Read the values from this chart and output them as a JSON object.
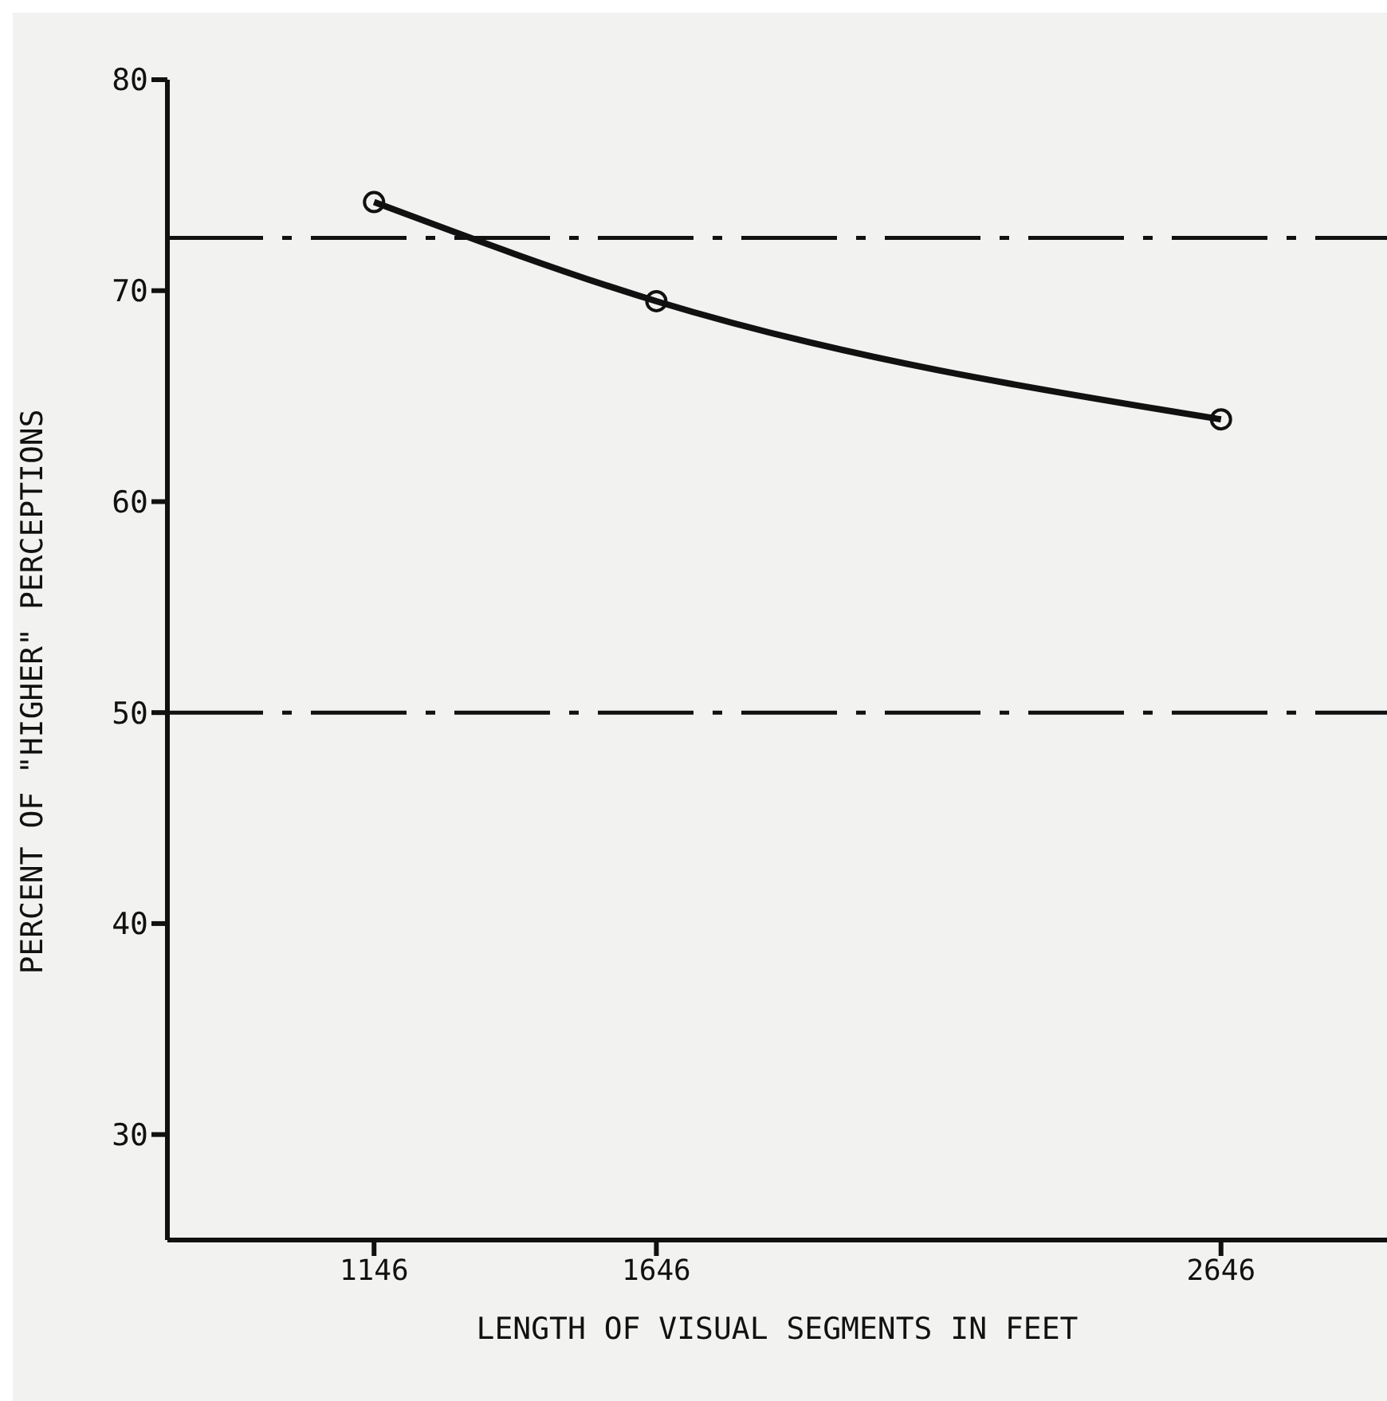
{
  "chart_data": {
    "type": "line",
    "xlabel": "LENGTH OF VISUAL SEGMENTS IN FEET",
    "ylabel": "PERCENT OF \"HIGHER\" PERCEPTIONS",
    "x": [
      1146,
      1646,
      2646
    ],
    "series": [
      {
        "color": "#111111",
        "values": [
          74.2,
          69.5,
          63.9
        ]
      }
    ],
    "xlim": [
      780,
      2940
    ],
    "xticks": [
      1146,
      1646,
      2646
    ],
    "ylim": [
      25,
      80
    ],
    "yticks": [
      30,
      40,
      50,
      60,
      70,
      80
    ],
    "ref_lines": [
      {
        "axis": "y",
        "value": 72.5,
        "line_style": "dashdot",
        "color": "#111111"
      },
      {
        "axis": "y",
        "value": 50,
        "line_style": "dashdot",
        "color": "#111111"
      }
    ],
    "marker": "circle",
    "line_style": "solid",
    "grid": false,
    "legend": false
  }
}
